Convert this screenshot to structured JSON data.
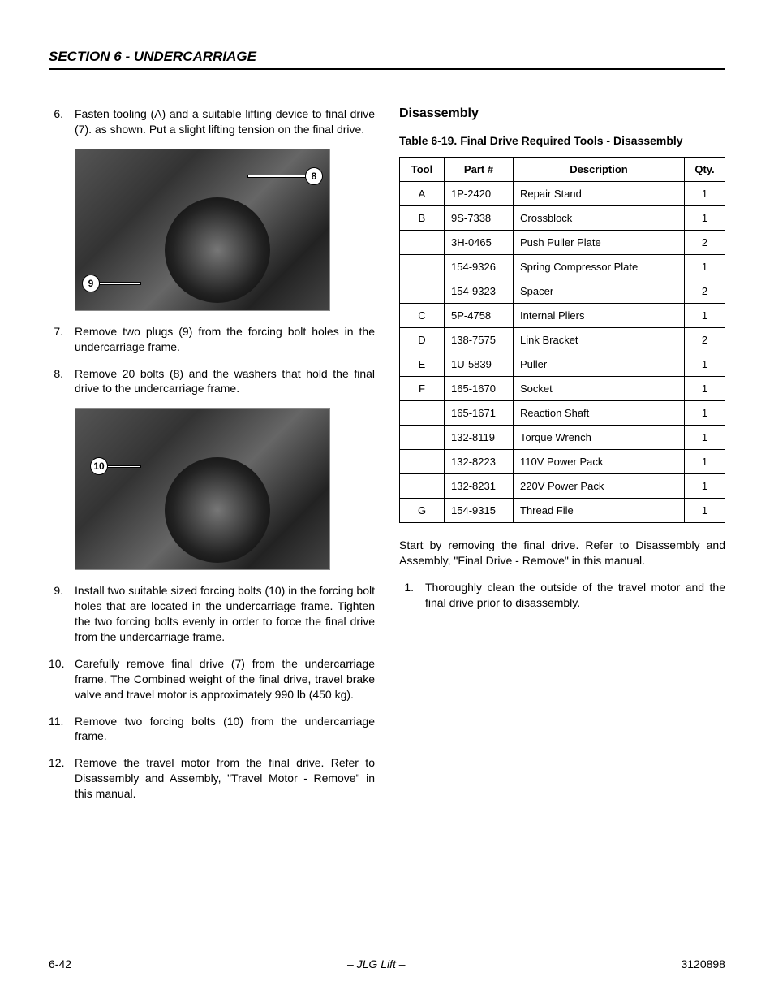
{
  "header": {
    "section_title": "SECTION 6 - UNDERCARRIAGE"
  },
  "left_col": {
    "steps_a": [
      {
        "n": "6.",
        "t": "Fasten tooling (A) and a suitable lifting device to final drive (7). as shown. Put a slight lifting tension on the final drive."
      }
    ],
    "fig1_callouts": {
      "c8": "8",
      "c9": "9"
    },
    "steps_b": [
      {
        "n": "7.",
        "t": "Remove two plugs (9) from the forcing bolt holes in the undercarriage frame."
      },
      {
        "n": "8.",
        "t": "Remove 20 bolts (8) and the washers that hold the final drive to the undercarriage frame."
      }
    ],
    "fig2_callouts": {
      "c10": "10"
    },
    "steps_c": [
      {
        "n": "9.",
        "t": "Install two suitable sized forcing bolts (10) in the forcing bolt holes that are located in the undercarriage frame. Tighten the two forcing bolts evenly in order to force the final drive from the undercarriage frame."
      },
      {
        "n": "10.",
        "t": "Carefully remove final drive (7) from the undercarriage frame. The Combined weight of the final drive, travel brake valve and travel motor is approximately 990 lb (450 kg)."
      },
      {
        "n": "11.",
        "t": "Remove two forcing bolts (10) from the undercarriage frame."
      },
      {
        "n": "12.",
        "t": "Remove the travel motor from the final drive. Refer to Disassembly and Assembly, \"Travel Motor - Remove\" in this manual."
      }
    ]
  },
  "right_col": {
    "heading": "Disassembly",
    "table_caption": "Table 6-19. Final Drive Required Tools - Disassembly",
    "table": {
      "headers": {
        "tool": "Tool",
        "part": "Part #",
        "desc": "Description",
        "qty": "Qty."
      },
      "rows": [
        {
          "tool": "A",
          "part": "1P-2420",
          "desc": "Repair Stand",
          "qty": "1"
        },
        {
          "tool": "B",
          "part": "9S-7338",
          "desc": "Crossblock",
          "qty": "1"
        },
        {
          "tool": "",
          "part": "3H-0465",
          "desc": "Push Puller Plate",
          "qty": "2"
        },
        {
          "tool": "",
          "part": "154-9326",
          "desc": "Spring Compressor Plate",
          "qty": "1"
        },
        {
          "tool": "",
          "part": "154-9323",
          "desc": "Spacer",
          "qty": "2"
        },
        {
          "tool": "C",
          "part": "5P-4758",
          "desc": "Internal Pliers",
          "qty": "1"
        },
        {
          "tool": "D",
          "part": "138-7575",
          "desc": "Link Bracket",
          "qty": "2"
        },
        {
          "tool": "E",
          "part": "1U-5839",
          "desc": "Puller",
          "qty": "1"
        },
        {
          "tool": "F",
          "part": "165-1670",
          "desc": "Socket",
          "qty": "1"
        },
        {
          "tool": "",
          "part": "165-1671",
          "desc": "Reaction Shaft",
          "qty": "1"
        },
        {
          "tool": "",
          "part": "132-8119",
          "desc": "Torque Wrench",
          "qty": "1"
        },
        {
          "tool": "",
          "part": "132-8223",
          "desc": "110V Power Pack",
          "qty": "1"
        },
        {
          "tool": "",
          "part": "132-8231",
          "desc": "220V Power Pack",
          "qty": "1"
        },
        {
          "tool": "G",
          "part": "154-9315",
          "desc": "Thread File",
          "qty": "1"
        }
      ]
    },
    "para": "Start by removing the final drive. Refer to Disassembly and Assembly, \"Final Drive - Remove\" in this manual.",
    "step1": {
      "n": "1.",
      "t": "Thoroughly clean the outside of the travel motor and the final drive prior to disassembly."
    }
  },
  "footer": {
    "page": "6-42",
    "center": "– JLG Lift –",
    "docnum": "3120898"
  }
}
